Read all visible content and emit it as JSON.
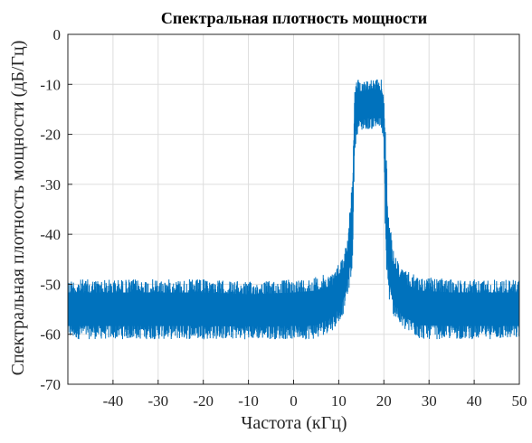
{
  "chart_data": {
    "type": "line",
    "title": "Спектральная плотность мощности",
    "xlabel": "Частота (кГц)",
    "ylabel": "Спектральная плотность мощности (дБ/Гц)",
    "xlim": [
      -50,
      50
    ],
    "ylim": [
      -70,
      0
    ],
    "xticks": [
      -40,
      -30,
      -20,
      -10,
      0,
      10,
      20,
      30,
      40,
      50
    ],
    "xtick_labels": [
      "-40",
      "-30",
      "-20",
      "-10",
      "0",
      "10",
      "20",
      "30",
      "40",
      "50"
    ],
    "yticks": [
      0,
      -10,
      -20,
      -30,
      -40,
      -50,
      -60,
      -70
    ],
    "ytick_labels": [
      "0",
      "-10",
      "-20",
      "-30",
      "-40",
      "-50",
      "-60",
      "-70"
    ],
    "grid": true,
    "series_color": "#0072BD",
    "series": [
      {
        "band_outline": {
          "x": [
            -50,
            -40,
            -30,
            -20,
            -10,
            0,
            5,
            9,
            11,
            12,
            13,
            13.5,
            14,
            16,
            18,
            19.5,
            20,
            20.5,
            21,
            22,
            24,
            28,
            35,
            45,
            50
          ],
          "y_upper": [
            -49,
            -49,
            -49,
            -49,
            -49.5,
            -49,
            -48.5,
            -47.5,
            -44,
            -40,
            -29,
            -11,
            -9,
            -9,
            -9,
            -9,
            -12,
            -22,
            -35,
            -43,
            -47,
            -48.5,
            -49,
            -49,
            -49
          ],
          "y_lower": [
            -61,
            -61,
            -61,
            -61,
            -61,
            -61,
            -61,
            -59,
            -56,
            -52,
            -48,
            -24,
            -20,
            -19,
            -19,
            -19,
            -24,
            -48,
            -53,
            -56,
            -59,
            -61,
            -61,
            -61,
            -61
          ]
        }
      }
    ]
  }
}
